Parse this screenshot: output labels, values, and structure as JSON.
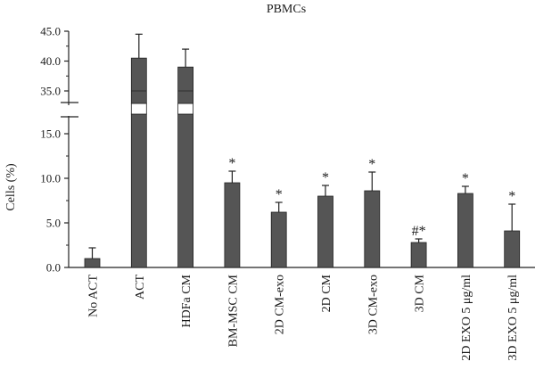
{
  "chart_data": {
    "type": "bar",
    "title": "PBMCs",
    "xlabel": "",
    "ylabel": "Cells (%)",
    "ylim": [
      0,
      45
    ],
    "axis_break": [
      17,
      33.5
    ],
    "yticks": [
      "0.0",
      "5.0",
      "10.0",
      "15.0",
      "35.0",
      "40.0",
      "45.0"
    ],
    "ytick_values": [
      0,
      5,
      10,
      15,
      35,
      40,
      45
    ],
    "categories": [
      "No ACT",
      "ACT",
      "HDFa CM",
      "BM-MSC CM",
      "2D CM-exo",
      "2D CM",
      "3D CM-exo",
      "3D CM",
      "2D EXO 5 μg/ml",
      "3D EXO 5 μg/ml"
    ],
    "values": [
      1.0,
      40.5,
      39.0,
      9.5,
      6.2,
      8.0,
      8.6,
      2.8,
      8.3,
      4.1
    ],
    "errors": [
      1.2,
      4.0,
      3.0,
      1.3,
      1.1,
      1.2,
      2.1,
      0.4,
      0.8,
      3.0
    ],
    "markers": [
      "",
      "",
      "",
      "*",
      "*",
      "*",
      "*",
      "#*",
      "*",
      "*"
    ],
    "bar_color": "#555555",
    "grid": false
  }
}
